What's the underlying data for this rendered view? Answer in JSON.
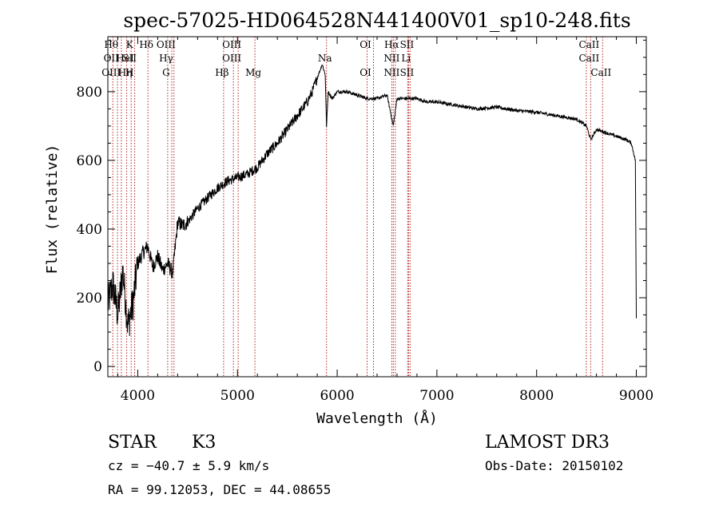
{
  "chart_data": {
    "type": "line",
    "title": "spec-57025-HD064528N441400V01_sp10-248.fits",
    "xlabel": "Wavelength (Å)",
    "ylabel": "Flux (relative)",
    "xlim": [
      3700,
      9100
    ],
    "ylim": [
      -30,
      960
    ],
    "xticks": [
      4000,
      5000,
      6000,
      7000,
      8000,
      9000
    ],
    "yticks": [
      0,
      200,
      400,
      600,
      800
    ],
    "xtick_labels": [
      "4000",
      "5000",
      "6000",
      "7000",
      "8000",
      "9000"
    ],
    "ytick_labels": [
      "0",
      "200",
      "400",
      "600",
      "800"
    ],
    "series": [
      {
        "name": "flux",
        "x": [
          3700,
          3750,
          3800,
          3850,
          3900,
          3950,
          4000,
          4050,
          4100,
          4150,
          4200,
          4250,
          4300,
          4350,
          4400,
          4450,
          4500,
          4600,
          4700,
          4800,
          4900,
          5000,
          5100,
          5200,
          5300,
          5400,
          5500,
          5600,
          5700,
          5750,
          5800,
          5850,
          5880,
          5893,
          5910,
          5950,
          6000,
          6100,
          6200,
          6300,
          6400,
          6500,
          6563,
          6600,
          6700,
          6800,
          6900,
          7000,
          7200,
          7400,
          7600,
          7800,
          8000,
          8200,
          8400,
          8500,
          8542,
          8600,
          8700,
          8800,
          8900,
          8950,
          8990,
          9000
        ],
        "y": [
          180,
          240,
          150,
          280,
          120,
          180,
          300,
          330,
          350,
          290,
          320,
          280,
          300,
          270,
          420,
          410,
          420,
          460,
          490,
          520,
          540,
          550,
          560,
          580,
          620,
          650,
          690,
          730,
          770,
          800,
          840,
          880,
          850,
          700,
          800,
          780,
          800,
          800,
          790,
          780,
          780,
          790,
          700,
          780,
          780,
          780,
          770,
          770,
          760,
          750,
          755,
          745,
          740,
          730,
          720,
          700,
          660,
          690,
          680,
          670,
          660,
          650,
          600,
          140
        ]
      }
    ],
    "line_markers": [
      {
        "x": 3750,
        "labels": [
          "Hθ",
          "OII",
          "OIII"
        ]
      },
      {
        "x": 3797,
        "labels": []
      },
      {
        "x": 3835,
        "labels": []
      },
      {
        "x": 3889,
        "labels": [
          "",
          "HeI",
          "Hη"
        ]
      },
      {
        "x": 3934,
        "labels": [
          "K",
          "SII",
          "H"
        ]
      },
      {
        "x": 3969,
        "labels": []
      },
      {
        "x": 4102,
        "labels": [
          "Hδ"
        ]
      },
      {
        "x": 4300,
        "labels": [
          "OIII",
          "Hγ",
          "G"
        ]
      },
      {
        "x": 4341,
        "labels": []
      },
      {
        "x": 4363,
        "labels": []
      },
      {
        "x": 4861,
        "labels": [
          "",
          "",
          "Hβ"
        ]
      },
      {
        "x": 4959,
        "labels": [
          "OIII",
          "OIII"
        ]
      },
      {
        "x": 5007,
        "labels": []
      },
      {
        "x": 5175,
        "labels": [
          "",
          "",
          "Mg"
        ]
      },
      {
        "x": 5893,
        "labels": [
          "",
          "Na"
        ]
      },
      {
        "x": 6300,
        "labels": [
          "OI",
          "",
          "OI"
        ]
      },
      {
        "x": 6364,
        "labels": []
      },
      {
        "x": 6548,
        "labels": []
      },
      {
        "x": 6563,
        "labels": [
          "Hα",
          "NII",
          "NII"
        ]
      },
      {
        "x": 6583,
        "labels": []
      },
      {
        "x": 6707,
        "labels": [
          "",
          "Li"
        ]
      },
      {
        "x": 6716,
        "labels": [
          "SII",
          "",
          "SII"
        ]
      },
      {
        "x": 6731,
        "labels": []
      },
      {
        "x": 8498,
        "labels": []
      },
      {
        "x": 8542,
        "labels": [
          "CaII",
          "CaII"
        ]
      },
      {
        "x": 8662,
        "labels": [
          "",
          "",
          "CaII"
        ]
      }
    ]
  },
  "info": {
    "object_class": "STAR",
    "subclass": "K3",
    "survey": "LAMOST DR3",
    "redshift": "cz = −40.7 ± 5.9 km/s",
    "obs_date": "Obs-Date: 20150102",
    "coords": "RA =  99.12053, DEC =  44.08655"
  },
  "colors": {
    "axis": "#000000",
    "marker": "#b22222",
    "spectrum": "#000000",
    "background": "#ffffff"
  }
}
